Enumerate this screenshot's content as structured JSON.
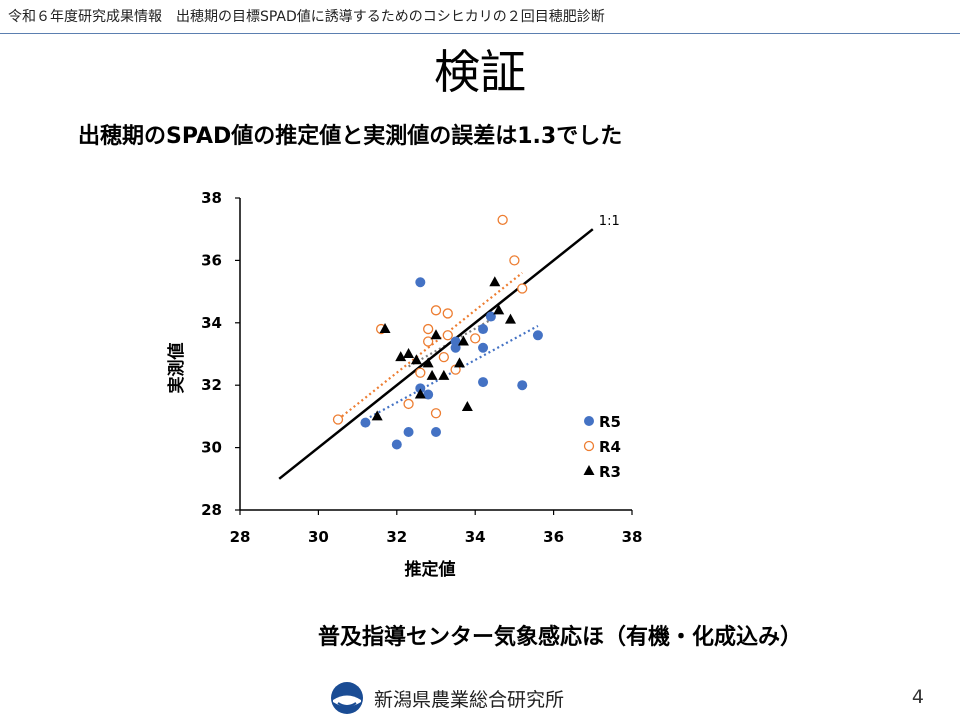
{
  "header": {
    "text": "令和６年度研究成果情報　出穂期の目標SPAD値に誘導するためのコシヒカリの２回目穂肥診断"
  },
  "slide": {
    "title": "検証",
    "subtitle": "出穂期のSPAD値の推定値と実測値の誤差は1.3でした",
    "source": "普及指導センター気象感応ほ（有機・化成込み）",
    "organization": "新潟県農業総合研究所",
    "page_number": "4"
  },
  "chart_data": {
    "type": "scatter",
    "xlabel": "推定値",
    "ylabel": "実測値",
    "xlim": [
      28,
      38
    ],
    "ylim": [
      28,
      38
    ],
    "xticks": [
      28,
      30,
      32,
      34,
      36,
      38
    ],
    "yticks": [
      28,
      30,
      32,
      34,
      36,
      38
    ],
    "legend_position": "right",
    "reference_line": {
      "label": "1:1",
      "x": [
        29,
        37
      ],
      "y": [
        29,
        37
      ]
    },
    "series": [
      {
        "name": "R5",
        "marker": "circle-filled",
        "color": "#4472c4",
        "points": [
          [
            31.2,
            30.8
          ],
          [
            32.0,
            30.1
          ],
          [
            32.3,
            30.5
          ],
          [
            33.0,
            30.5
          ],
          [
            32.6,
            35.3
          ],
          [
            33.5,
            33.4
          ],
          [
            33.5,
            33.2
          ],
          [
            34.2,
            33.8
          ],
          [
            34.2,
            33.2
          ],
          [
            34.4,
            34.2
          ],
          [
            32.6,
            31.9
          ],
          [
            32.8,
            31.7
          ],
          [
            34.2,
            32.1
          ],
          [
            35.2,
            32.0
          ],
          [
            35.6,
            33.6
          ]
        ],
        "trend": {
          "x": [
            31.2,
            35.6
          ],
          "y": [
            30.9,
            33.9
          ]
        }
      },
      {
        "name": "R4",
        "marker": "circle-open",
        "color": "#ed7d31",
        "points": [
          [
            30.5,
            30.9
          ],
          [
            31.6,
            33.8
          ],
          [
            32.3,
            31.4
          ],
          [
            32.6,
            32.4
          ],
          [
            32.8,
            33.8
          ],
          [
            32.8,
            33.4
          ],
          [
            33.0,
            34.4
          ],
          [
            33.0,
            31.1
          ],
          [
            33.3,
            34.3
          ],
          [
            33.2,
            32.9
          ],
          [
            33.3,
            33.6
          ],
          [
            33.5,
            32.5
          ],
          [
            34.0,
            33.5
          ],
          [
            34.7,
            37.3
          ],
          [
            35.0,
            36.0
          ],
          [
            35.2,
            35.1
          ]
        ],
        "trend": {
          "x": [
            30.5,
            35.2
          ],
          "y": [
            30.9,
            35.6
          ]
        }
      },
      {
        "name": "R3",
        "marker": "triangle",
        "color": "#000000",
        "points": [
          [
            31.5,
            31.0
          ],
          [
            31.7,
            33.8
          ],
          [
            32.1,
            32.9
          ],
          [
            32.3,
            33.0
          ],
          [
            32.5,
            32.8
          ],
          [
            32.6,
            31.7
          ],
          [
            32.8,
            32.7
          ],
          [
            32.9,
            32.3
          ],
          [
            33.0,
            33.6
          ],
          [
            33.2,
            32.3
          ],
          [
            33.6,
            32.7
          ],
          [
            33.7,
            33.4
          ],
          [
            33.8,
            31.3
          ],
          [
            34.5,
            35.3
          ],
          [
            34.6,
            34.4
          ],
          [
            34.9,
            34.1
          ]
        ],
        "trend": {
          "x": [
            32.3,
            34.4
          ],
          "y": [
            32.6,
            34.1
          ]
        }
      }
    ]
  }
}
